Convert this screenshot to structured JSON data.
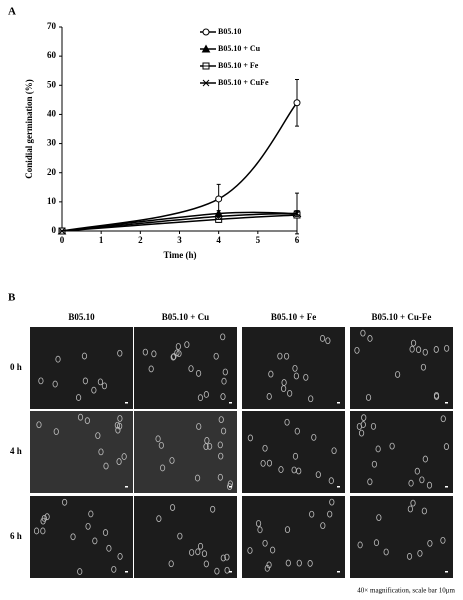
{
  "chart_data": {
    "type": "line",
    "panel_label": "A",
    "xlabel": "Time (h)",
    "ylabel": "Conidial germination (%)",
    "x": [
      0,
      4,
      6
    ],
    "xlim": [
      0,
      6
    ],
    "xticks": [
      0,
      1,
      2,
      3,
      4,
      5,
      6
    ],
    "ylim": [
      0,
      70
    ],
    "yticks": [
      0,
      10,
      20,
      30,
      40,
      50,
      60,
      70
    ],
    "series": [
      {
        "name": "B05.10",
        "color": "#000000",
        "marker": "circle",
        "values": [
          0,
          11,
          44
        ],
        "errors": [
          0,
          5,
          8
        ]
      },
      {
        "name": "B05.10 + Cu",
        "color": "#000000",
        "marker": "triangle",
        "values": [
          0,
          6,
          6
        ],
        "errors": [
          0,
          1,
          7
        ]
      },
      {
        "name": "B05.10 + Fe",
        "color": "#000000",
        "marker": "square",
        "values": [
          0,
          4,
          5.5
        ],
        "errors": [
          0,
          1,
          1
        ]
      },
      {
        "name": "B05.10 + CuFe",
        "color": "#000000",
        "marker": "cross",
        "values": [
          0,
          5,
          6
        ],
        "errors": [
          0,
          1,
          1
        ]
      }
    ]
  },
  "panel_b": {
    "label": "B",
    "columns": [
      "B05.10",
      "B05.10 + Cu",
      "B05.10 + Fe",
      "B05.10 + Cu-Fe"
    ],
    "rows": [
      "0 h",
      "4 h",
      "6 h"
    ],
    "caption": "40× magnification, scale bar 10μm"
  }
}
